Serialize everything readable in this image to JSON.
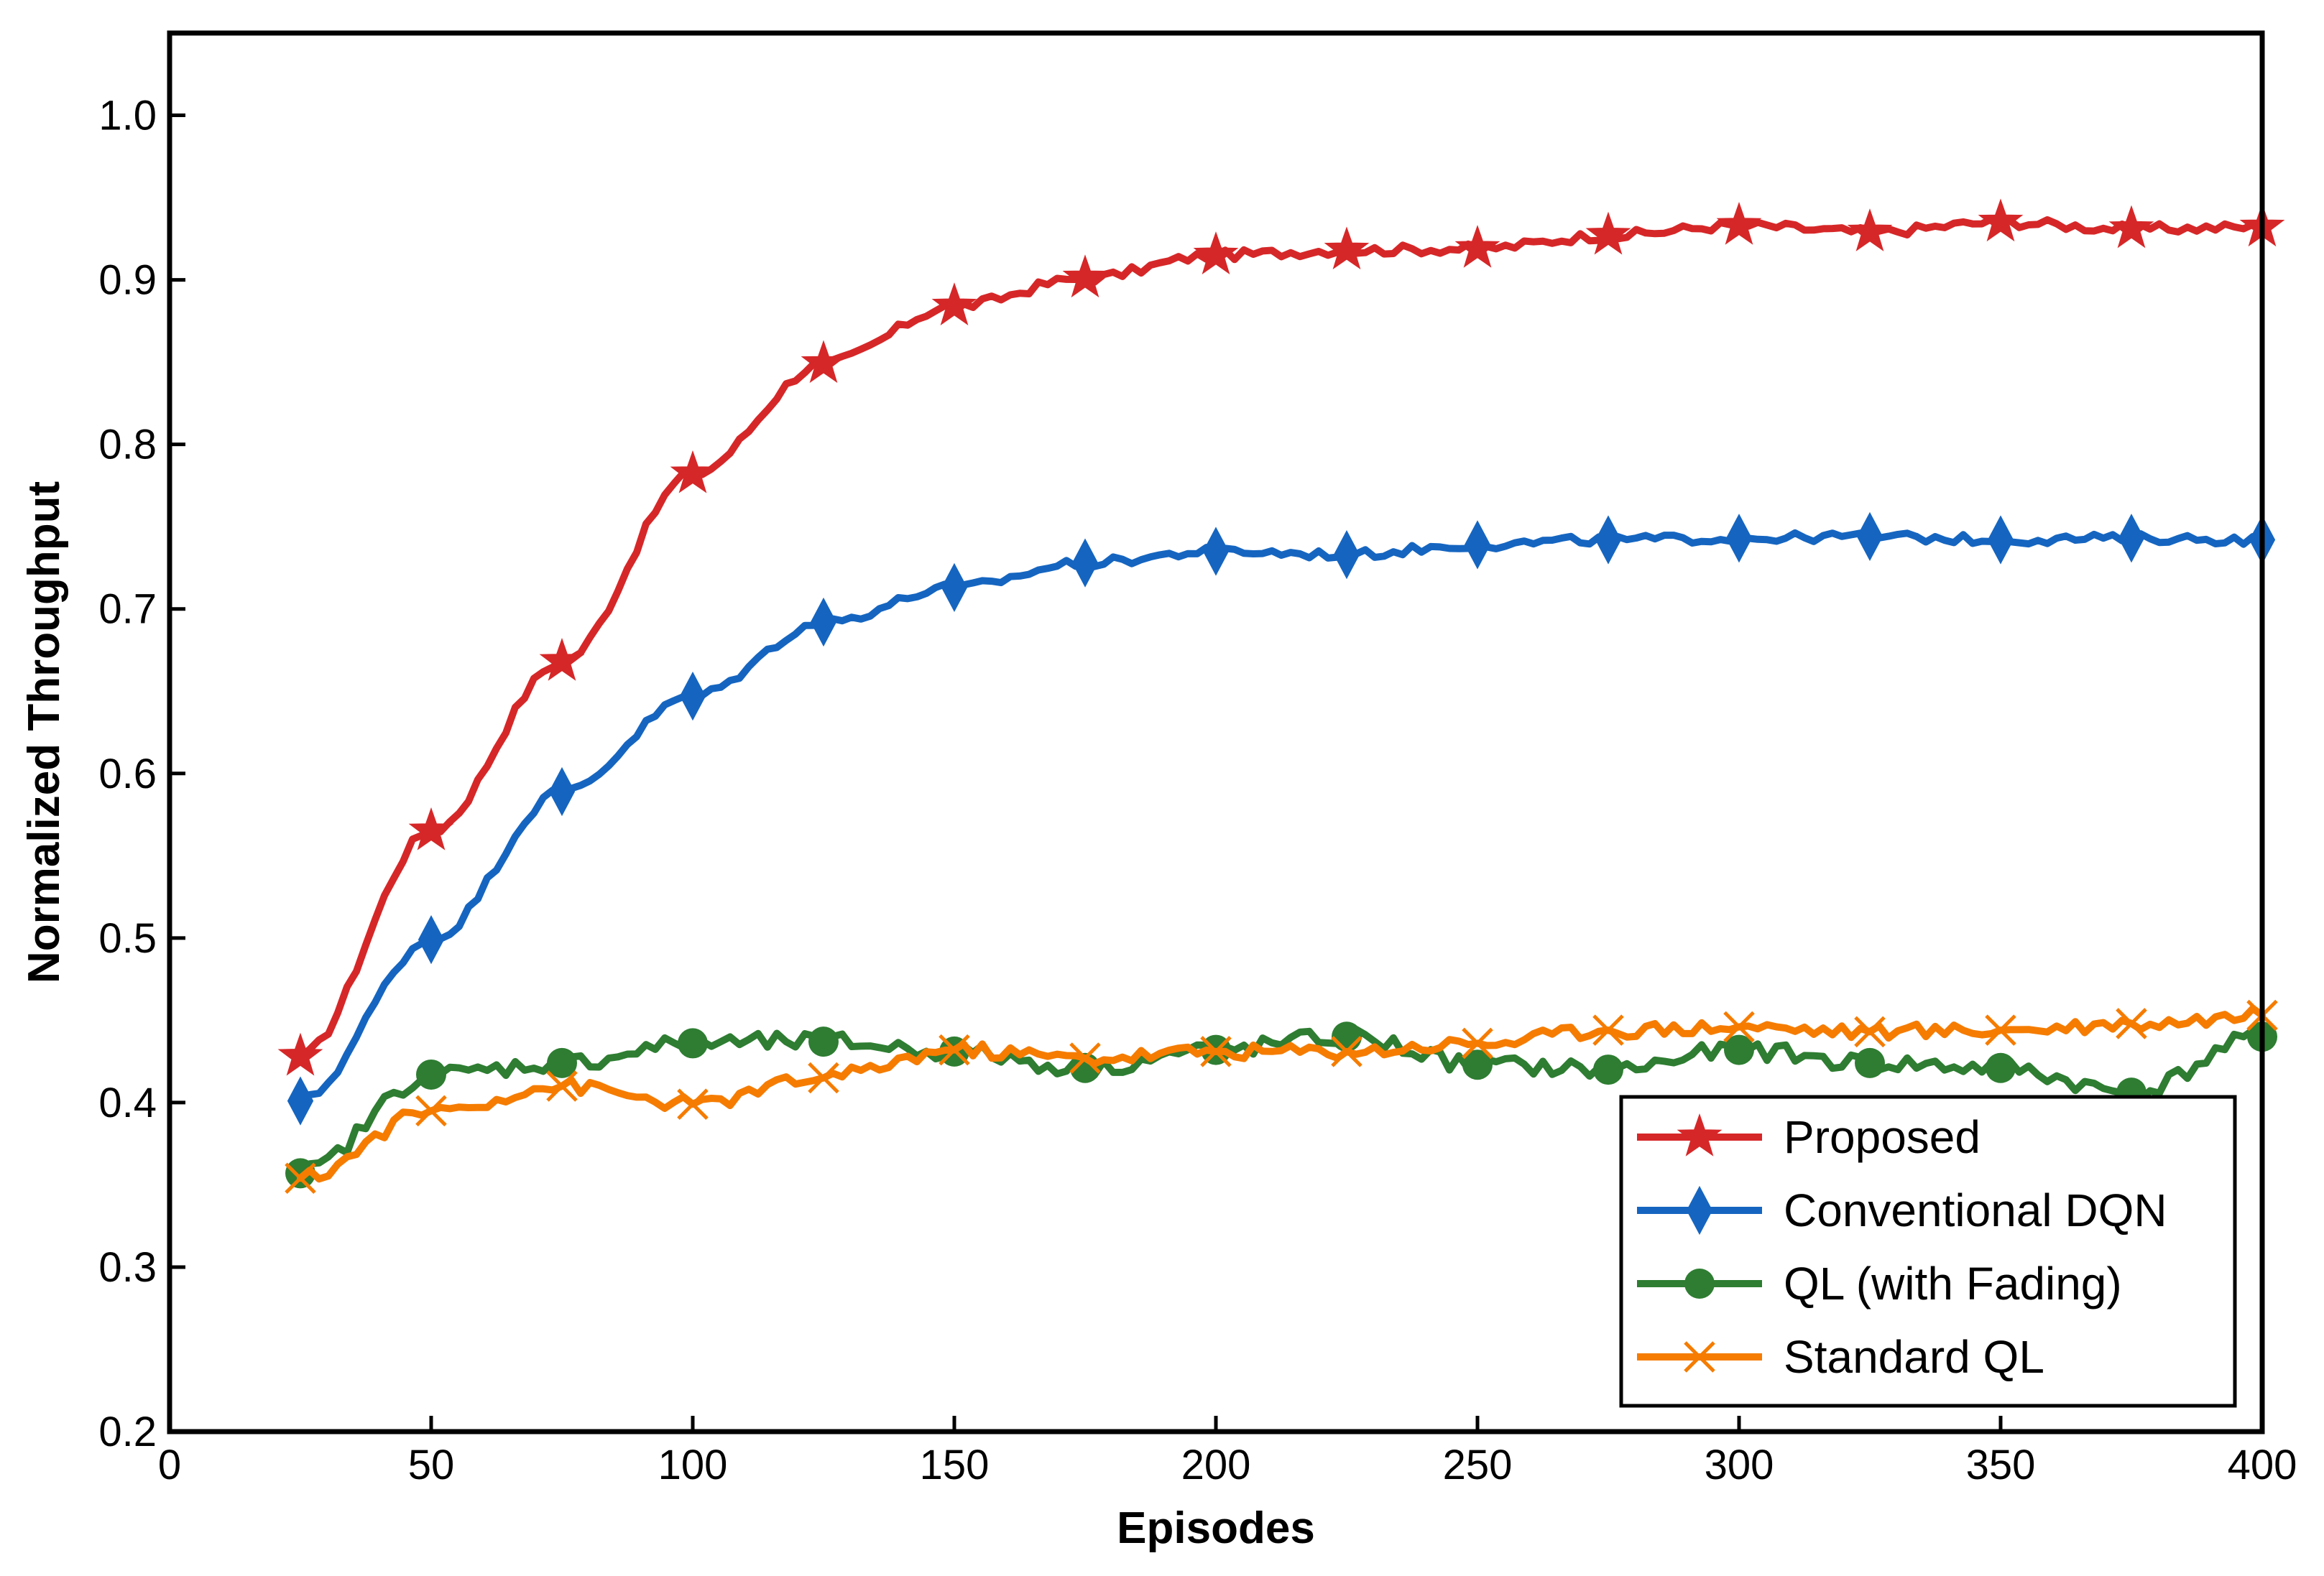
{
  "chart_data": {
    "type": "line",
    "title": "",
    "xlabel": "Episodes",
    "ylabel": "Normalized Throughput",
    "xlim": [
      0,
      400
    ],
    "ylim": [
      0.2,
      1.05
    ],
    "xticks": [
      0,
      50,
      100,
      150,
      200,
      250,
      300,
      350,
      400
    ],
    "xtick_labels": [
      "0",
      "50",
      "100",
      "150",
      "200",
      "250",
      "300",
      "350",
      "400"
    ],
    "yticks": [
      0.2,
      0.3,
      0.4,
      0.5,
      0.6,
      0.7,
      0.8,
      0.9,
      1.0
    ],
    "ytick_labels": [
      "0.2",
      "0.3",
      "0.4",
      "0.5",
      "0.6",
      "0.7",
      "0.8",
      "0.9",
      "1.0"
    ],
    "grid": false,
    "legend_position": "bottom-right",
    "series": [
      {
        "name": "Proposed",
        "color": "#d62728",
        "marker": "star",
        "x": [
          25,
          50,
          75,
          100,
          125,
          150,
          175,
          200,
          225,
          250,
          275,
          300,
          325,
          350,
          375,
          400
        ],
        "y": [
          0.428,
          0.565,
          0.668,
          0.782,
          0.849,
          0.884,
          0.901,
          0.915,
          0.918,
          0.919,
          0.927,
          0.933,
          0.929,
          0.935,
          0.931,
          0.932
        ]
      },
      {
        "name": "Conventional DQN",
        "color": "#1565c0",
        "marker": "diamond",
        "x": [
          25,
          50,
          75,
          100,
          125,
          150,
          175,
          200,
          225,
          250,
          275,
          300,
          325,
          350,
          375,
          400
        ],
        "y": [
          0.401,
          0.499,
          0.589,
          0.647,
          0.692,
          0.713,
          0.728,
          0.735,
          0.733,
          0.739,
          0.742,
          0.743,
          0.744,
          0.742,
          0.743,
          0.742
        ]
      },
      {
        "name": "QL (with Fading)",
        "color": "#2e7d32",
        "marker": "circle",
        "x": [
          25,
          50,
          75,
          100,
          125,
          150,
          175,
          200,
          225,
          250,
          275,
          300,
          325,
          350,
          375,
          400
        ],
        "y": [
          0.357,
          0.417,
          0.424,
          0.436,
          0.437,
          0.431,
          0.421,
          0.432,
          0.44,
          0.423,
          0.42,
          0.432,
          0.424,
          0.421,
          0.406,
          0.44
        ]
      },
      {
        "name": "Standard QL",
        "color": "#f57c00",
        "marker": "x",
        "x": [
          25,
          50,
          75,
          100,
          125,
          150,
          175,
          200,
          225,
          250,
          275,
          300,
          325,
          350,
          375,
          400
        ],
        "y": [
          0.354,
          0.395,
          0.41,
          0.399,
          0.415,
          0.432,
          0.427,
          0.431,
          0.431,
          0.436,
          0.444,
          0.446,
          0.443,
          0.444,
          0.448,
          0.453
        ]
      }
    ]
  }
}
